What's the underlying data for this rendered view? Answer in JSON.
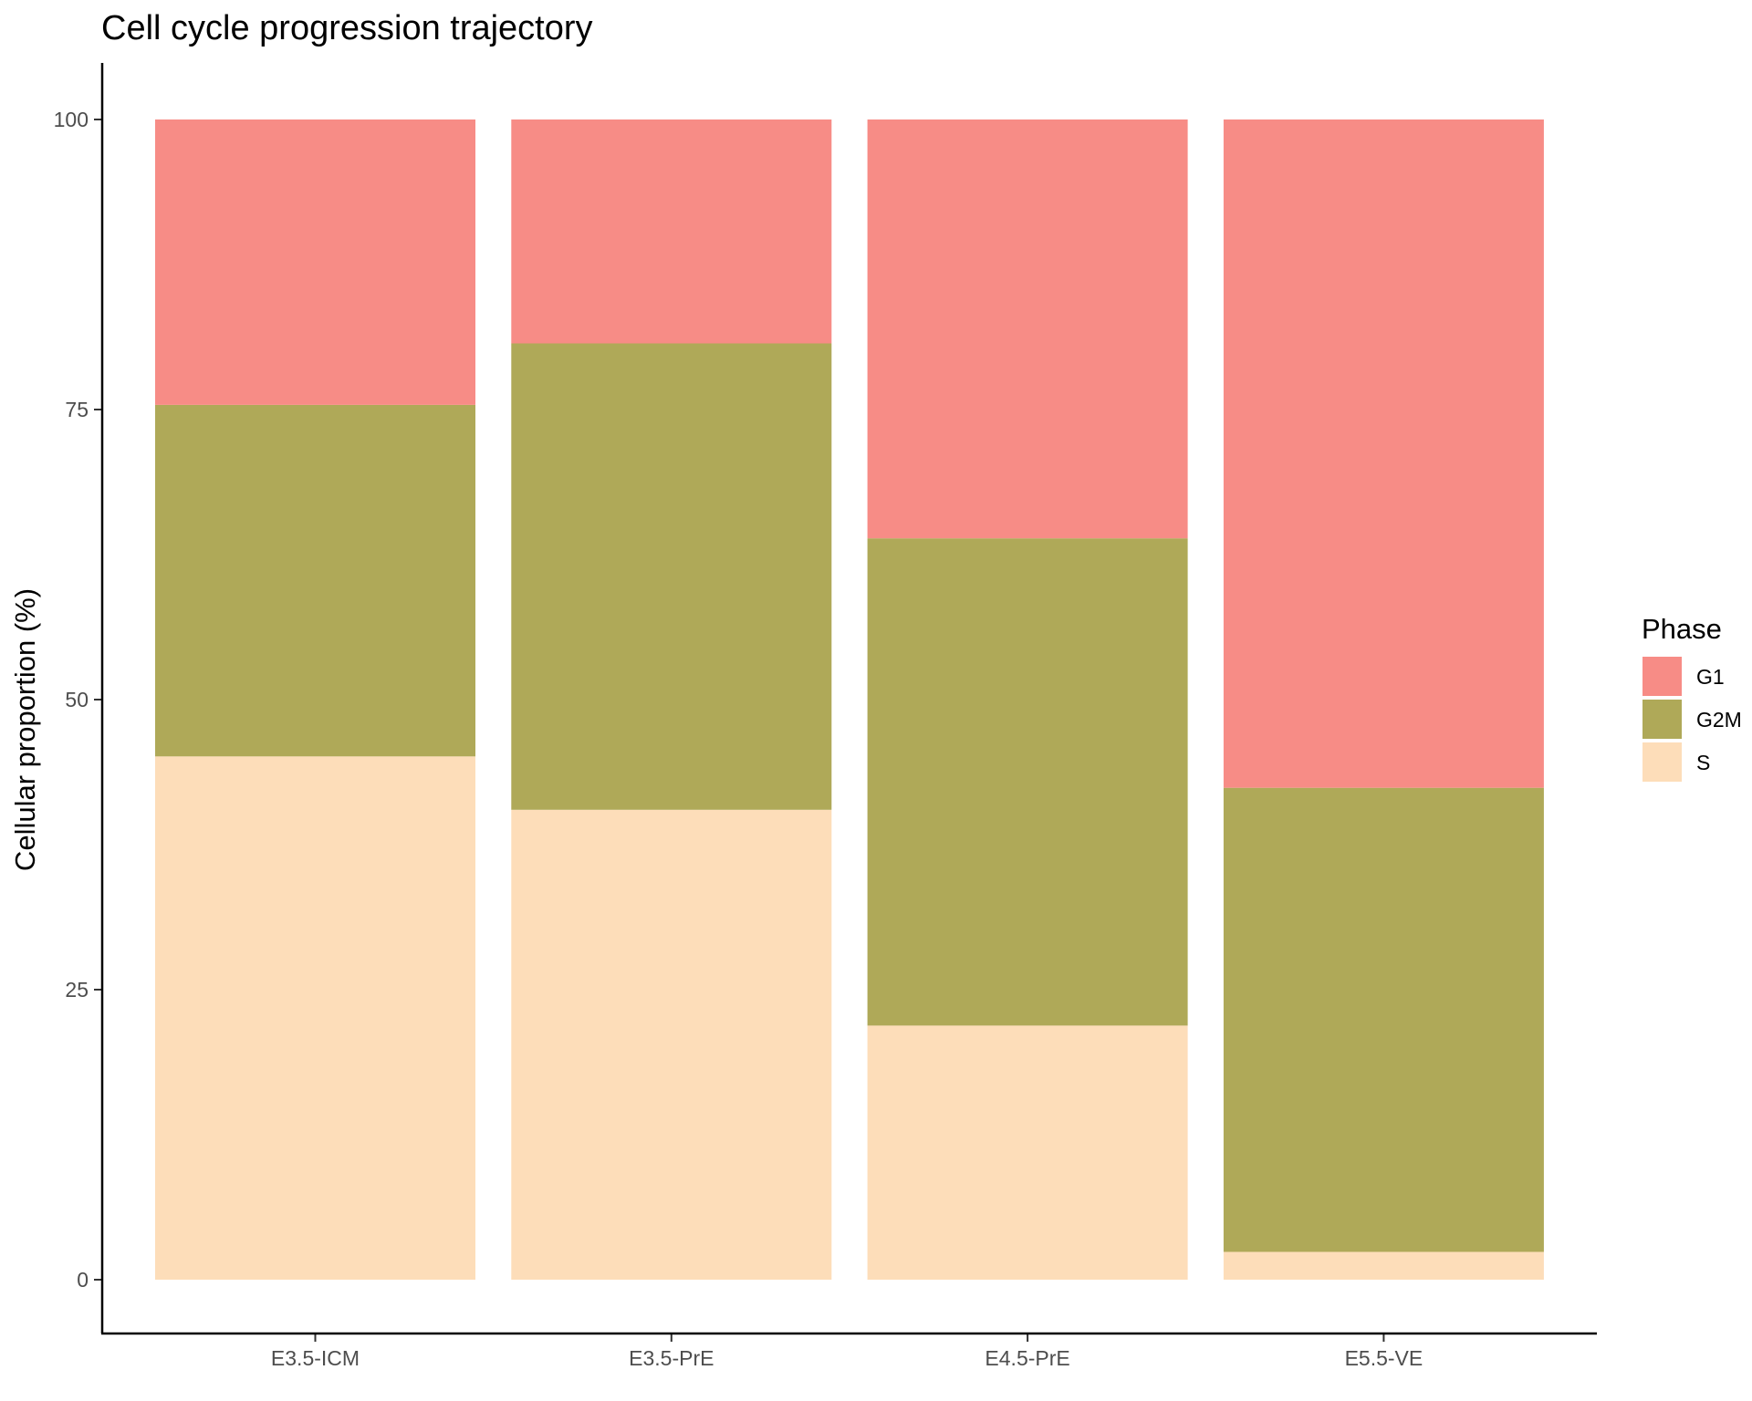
{
  "chart_data": {
    "type": "bar",
    "stacked": true,
    "title": "Cell cycle progression trajectory",
    "xlabel": "",
    "ylabel": "Cellular proportion (%)",
    "ylim": [
      0,
      100
    ],
    "yticks": [
      0,
      25,
      50,
      75,
      100
    ],
    "categories": [
      "E3.5-ICM",
      "E3.5-PrE",
      "E4.5-PrE",
      "E5.5-VE"
    ],
    "series": [
      {
        "name": "S",
        "color": "#FDDDB9",
        "values": [
          45.1,
          40.5,
          21.9,
          2.4
        ]
      },
      {
        "name": "G2M",
        "color": "#AFA958",
        "values": [
          30.3,
          40.2,
          42.0,
          40.0
        ]
      },
      {
        "name": "G1",
        "color": "#F78C86",
        "values": [
          24.6,
          19.3,
          36.1,
          57.6
        ]
      }
    ],
    "legend": {
      "title": "Phase",
      "position": "right",
      "entries": [
        {
          "label": "G1",
          "color": "#F78C86"
        },
        {
          "label": "G2M",
          "color": "#AFA958"
        },
        {
          "label": "S",
          "color": "#FDDDB9"
        }
      ]
    },
    "grid": false
  }
}
